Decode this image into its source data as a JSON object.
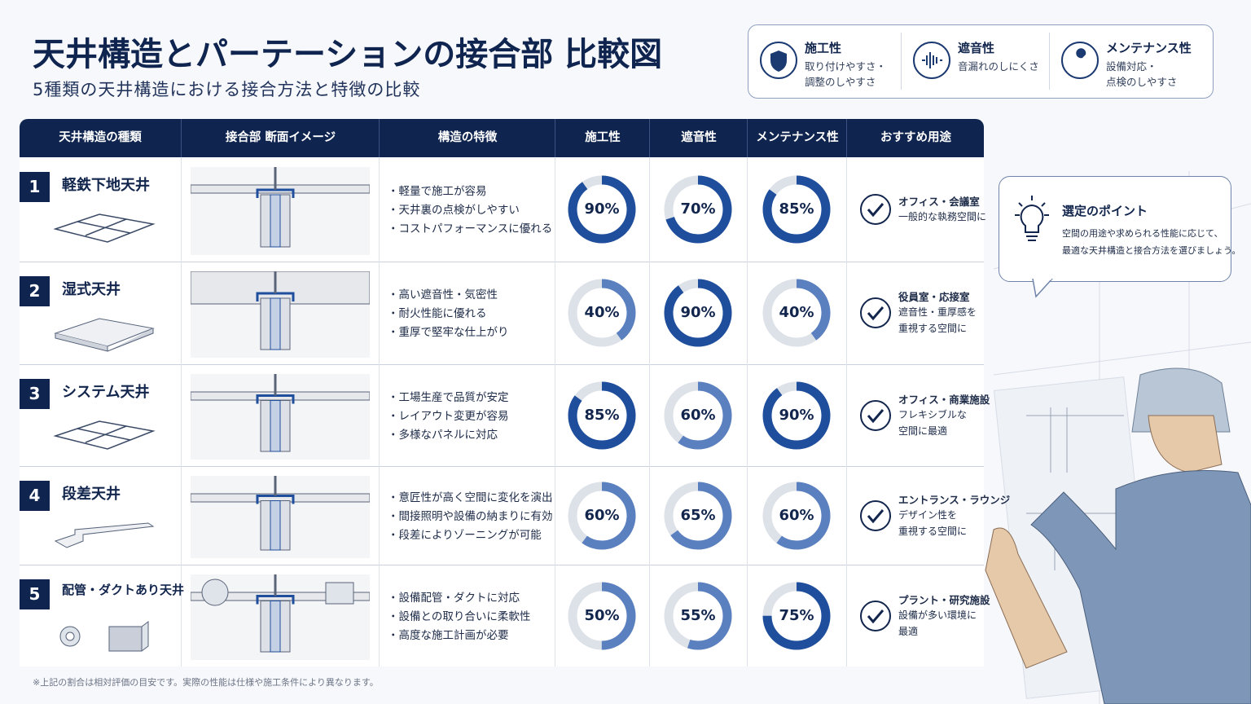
{
  "header": {
    "title": "天井構造とパーテーションの接合部 比較図",
    "subtitle": "5種類の天井構造における接合方法と特徴の比較"
  },
  "legend": [
    {
      "title": "施工性",
      "lines": [
        "取り付けやすさ・",
        "調整のしやすさ"
      ]
    },
    {
      "title": "遮音性",
      "lines": [
        "音漏れのしにくさ"
      ]
    },
    {
      "title": "メンテナンス性",
      "lines": [
        "設備対応・",
        "点検のしやすさ"
      ]
    }
  ],
  "table": {
    "columns": [
      "天井構造の種類",
      "接合部 断面イメージ",
      "構造の特徴",
      "施工性",
      "遮音性",
      "メンテナンス性",
      "おすすめ用途"
    ],
    "rows": [
      {
        "num": 1,
        "name": "軽鉄下地天井",
        "features": [
          "・軽量で施工が容易",
          "・天井裏の点検がしやすい",
          "・コストパフォーマンスに優れる"
        ],
        "ratings": {
          "values": [
            90,
            70,
            85
          ],
          "value_labels": [
            "90%",
            "70%",
            "85%"
          ]
        },
        "use": [
          "オフィス・会議室",
          "一般的な執務空間に"
        ]
      },
      {
        "num": 2,
        "name": "湿式天井",
        "features": [
          "・高い遮音性・気密性",
          "・耐火性能に優れる",
          "・重厚で堅牢な仕上がり"
        ],
        "ratings": {
          "values": [
            40,
            90,
            40
          ],
          "value_labels": [
            "40%",
            "90%",
            "40%"
          ]
        },
        "use": [
          "役員室・応接室",
          "遮音性・重厚感を",
          "重視する空間に"
        ]
      },
      {
        "num": 3,
        "name": "システム天井",
        "features": [
          "・工場生産で品質が安定",
          "・レイアウト変更が容易",
          "・多様なパネルに対応"
        ],
        "ratings": {
          "values": [
            85,
            60,
            90
          ],
          "value_labels": [
            "85%",
            "60%",
            "90%"
          ]
        },
        "use": [
          "オフィス・商業施設",
          "フレキシブルな",
          "空間に最適"
        ]
      },
      {
        "num": 4,
        "name": "段差天井",
        "features": [
          "・意匠性が高く空間に変化を演出",
          "・間接照明や設備の納まりに有効",
          "・段差によりゾーニングが可能"
        ],
        "ratings": {
          "values": [
            60,
            65,
            60
          ],
          "value_labels": [
            "60%",
            "65%",
            "60%"
          ]
        },
        "use": [
          "エントランス・ラウンジ",
          "デザイン性を",
          "重視する空間に"
        ]
      },
      {
        "num": 5,
        "name": "配管・ダクトあり天井",
        "features": [
          "・設備配管・ダクトに対応",
          "・設備との取り合いに柔軟性",
          "・高度な施工計画が必要"
        ],
        "ratings": {
          "values": [
            50,
            55,
            75
          ],
          "value_labels": [
            "50%",
            "55%",
            "75%"
          ]
        },
        "use": [
          "プラント・研究施設",
          "設備が多い環境に",
          "最適"
        ]
      }
    ]
  },
  "point": {
    "title": "選定のポイント",
    "lines": [
      "空間の用途や求められる性能に応じて、",
      "最適な天井構造と接合方法を選びましょう。"
    ]
  },
  "footnote": "※上記の割合は相対評価の目安です。実際の性能は仕様や施工条件により異なります。"
}
